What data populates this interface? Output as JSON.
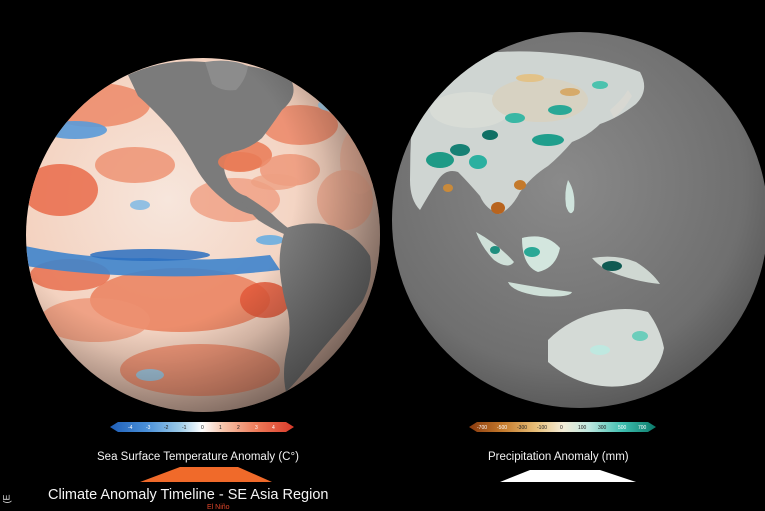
{
  "globe_left": {
    "legend": {
      "title": "Sea Surface Temperature Anomaly (C°)",
      "ticks": [
        "-4",
        "-3",
        "-2",
        "-1",
        "0",
        "1",
        "2",
        "3",
        "4"
      ],
      "colors": [
        "#1f5fb8",
        "#4a90d9",
        "#9ccbe8",
        "#ffffff",
        "#f6c2a8",
        "#ee7a58",
        "#d93a2a"
      ]
    }
  },
  "globe_right": {
    "legend": {
      "title": "Precipitation Anomaly (mm)",
      "ticks": [
        "-700",
        "-500",
        "-300",
        "-100",
        "0",
        "100",
        "300",
        "500",
        "700"
      ],
      "colors": [
        "#8a3a0e",
        "#c47a2c",
        "#e8c07a",
        "#f4ecd6",
        "#bfe8e0",
        "#3fbfb0",
        "#0b7a6a"
      ]
    }
  },
  "timeline": {
    "title": "Climate Anomaly Timeline - SE Asia Region",
    "marker_label": "El Niño",
    "left_marker_color": "#f06a2a",
    "right_marker_color": "#ffffff"
  },
  "side_glyph": "(E"
}
